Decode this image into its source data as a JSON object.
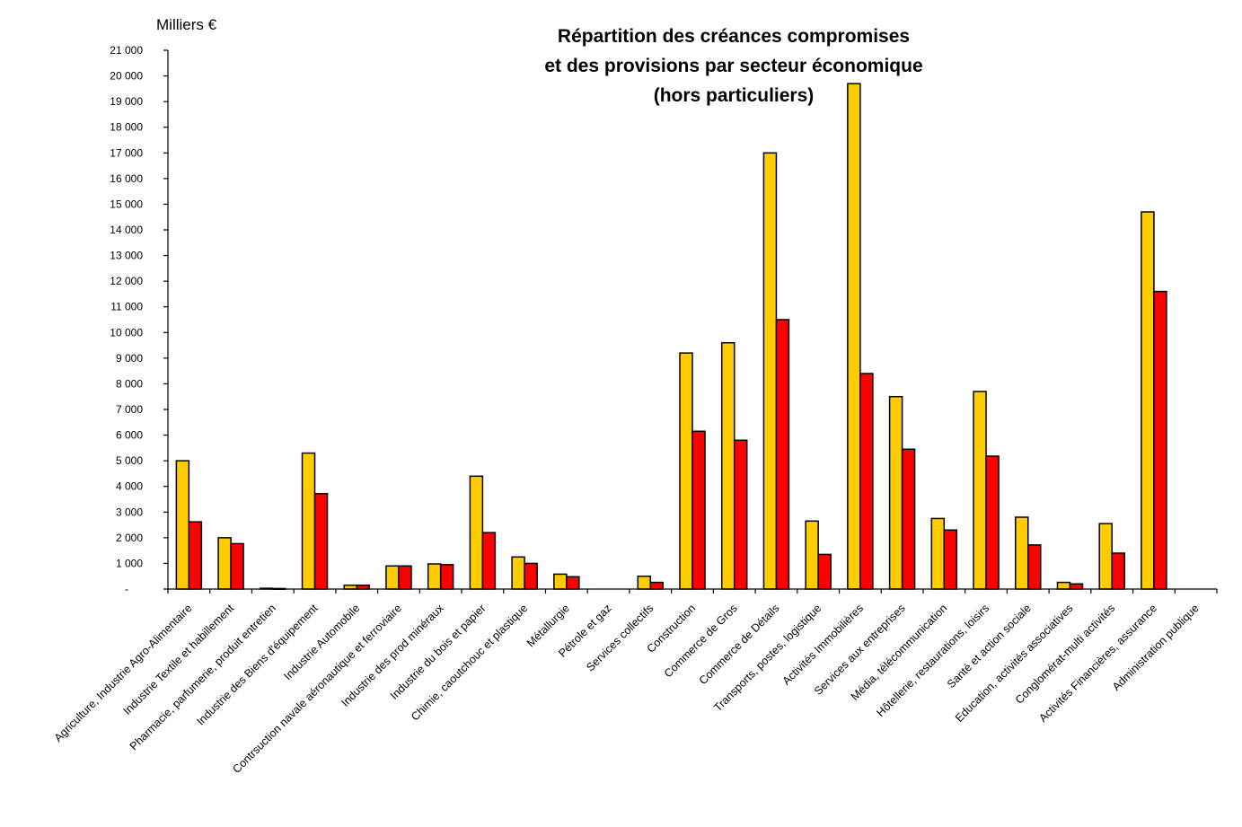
{
  "chart_data": {
    "type": "bar",
    "title": [
      "Répartition des créances compromises",
      "et des provisions par secteur économique",
      "(hors particuliers)"
    ],
    "unit_label": "Milliers €",
    "ylim": [
      0,
      21000
    ],
    "ytick_labels": [
      "-",
      "1 000",
      "2 000",
      "3 000",
      "4 000",
      "5 000",
      "6 000",
      "7 000",
      "8 000",
      "9 000",
      "10 000",
      "11 000",
      "12 000",
      "13 000",
      "14 000",
      "15 000",
      "16 000",
      "17 000",
      "18 000",
      "19 000",
      "20 000",
      "21 000"
    ],
    "grid": false,
    "legend": "none",
    "categories": [
      "Agriculture, Industrie Agro-Alimentaire",
      "Industrie Textile et habillement",
      "Pharmacie, parfumerie, produit entretien",
      "Industrie des Biens d'équipement",
      "Industrie Automobile",
      "Contrsuction navale aéronautique et ferroviaire",
      "Industrie des prod minéraux",
      "Industrie du bois et papier",
      "Chimie, caoutchouc et plastique",
      "Métallurgie",
      "Pétrole et gaz",
      "Services collectifs",
      "Construction",
      "Commerce de Gros",
      "Commerce de Détails",
      "Transports, postes, logistique",
      "Activités Immobilières",
      "Services aux entreprises",
      "Média, télécommunication",
      "Hôtellerie, restaurations, loisirs",
      "Santé et action sociale",
      "Education, activités associatives",
      "Conglomérat-multi activités",
      "Activités Financières, assurance",
      "Administration publique"
    ],
    "series": [
      {
        "color": "#FFCC00",
        "values": [
          5000,
          2000,
          30,
          5300,
          150,
          900,
          980,
          4400,
          1250,
          580,
          0,
          500,
          9200,
          9600,
          17000,
          2650,
          19700,
          7500,
          2750,
          7700,
          2800,
          260,
          2550,
          14700,
          0
        ]
      },
      {
        "color": "#FF0000",
        "values": [
          2620,
          1770,
          20,
          3720,
          150,
          900,
          950,
          2200,
          1000,
          480,
          0,
          260,
          6150,
          5800,
          10500,
          1350,
          8400,
          5450,
          2300,
          5180,
          1720,
          200,
          1400,
          11600,
          0
        ]
      }
    ]
  }
}
